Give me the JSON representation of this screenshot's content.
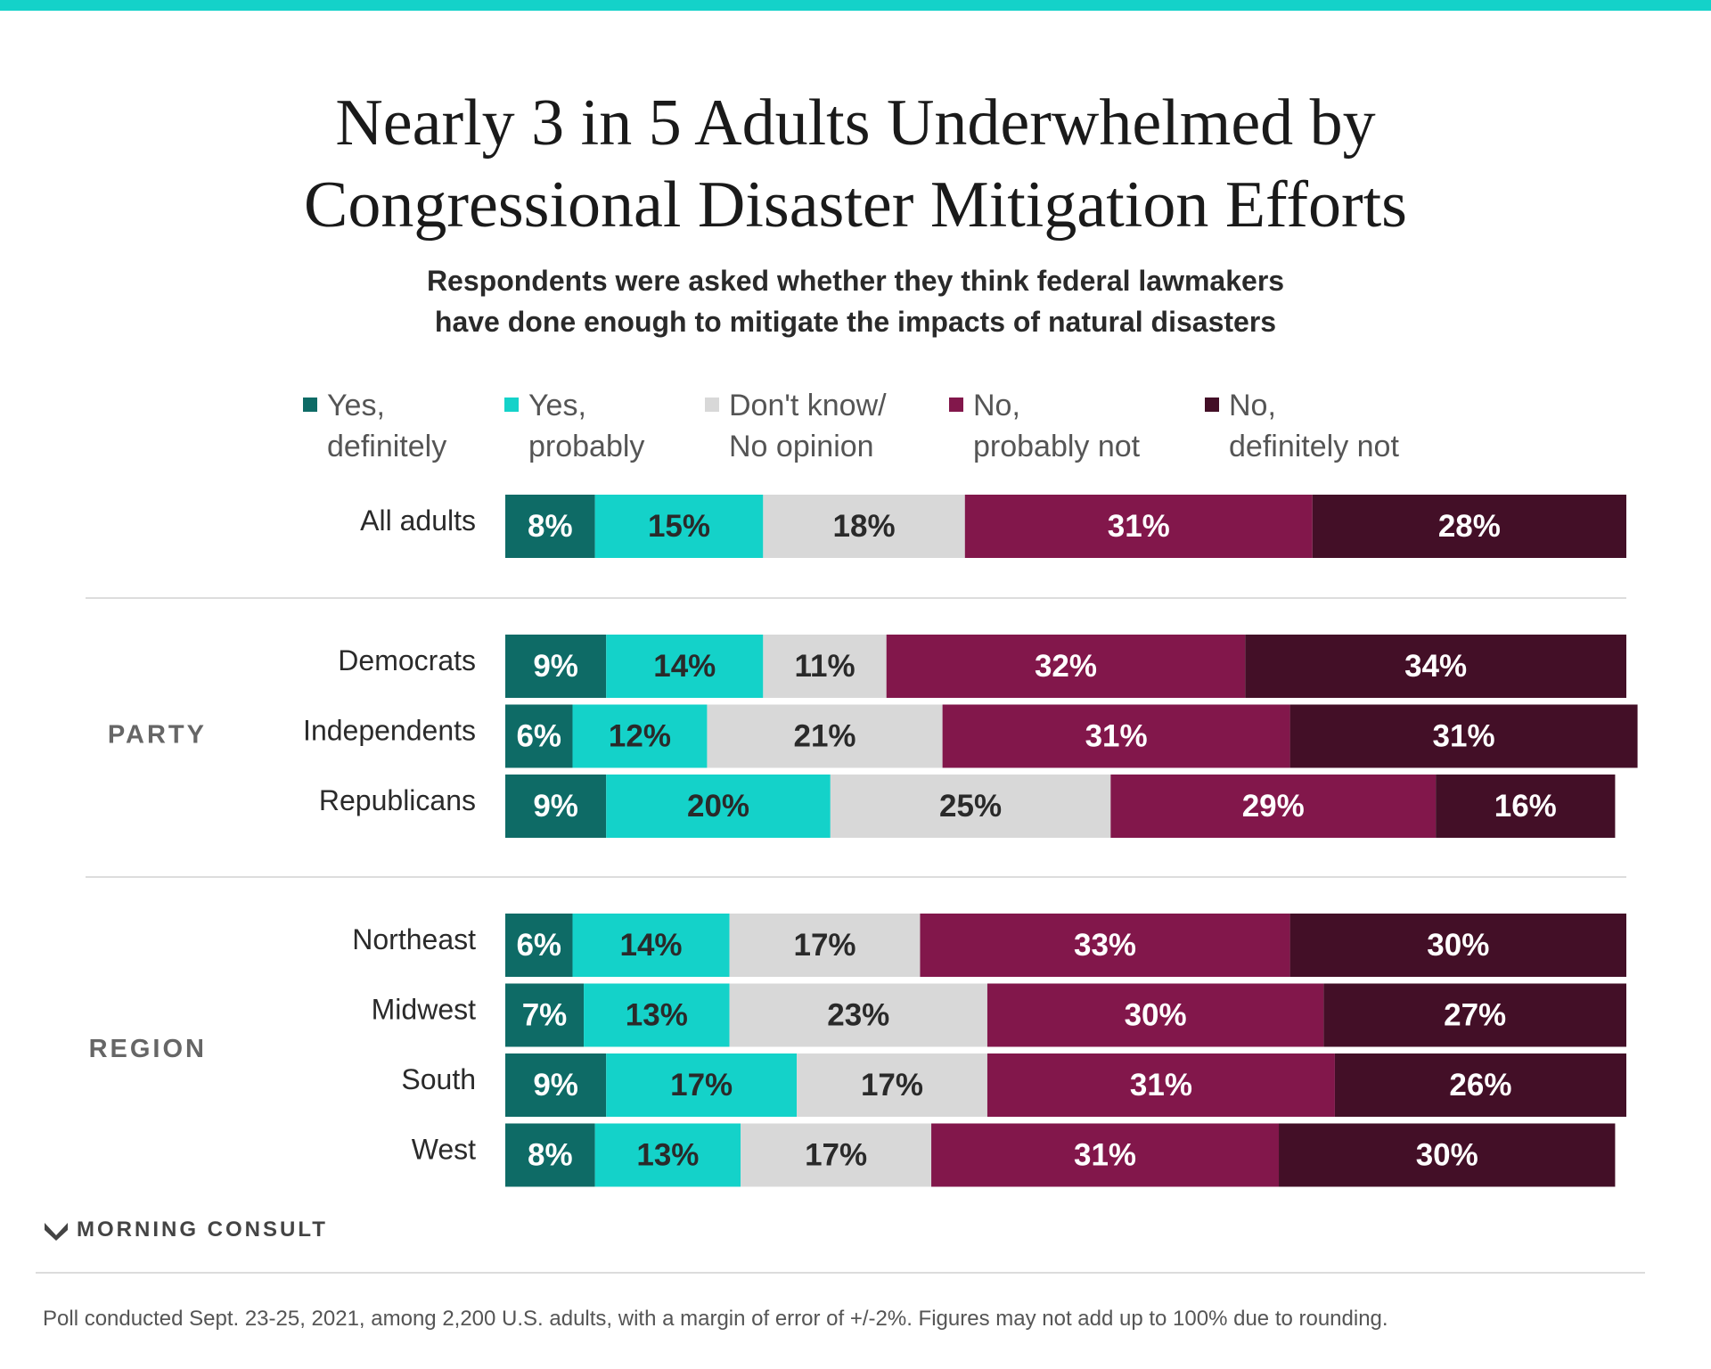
{
  "title_line1": "Nearly 3 in 5 Adults Underwhelmed by",
  "title_line2": "Congressional Disaster Mitigation Efforts",
  "subtitle_line1": "Respondents were asked whether they think federal lawmakers",
  "subtitle_line2": "have done enough to mitigate the impacts of natural disasters",
  "logo_text": "MORNING CONSULT",
  "footnote": "Poll conducted Sept. 23-25, 2021, among 2,200 U.S. adults, with a margin of error of +/-2%. Figures may not add up to 100% due to rounding.",
  "colors": {
    "top_bar": "#14d2c9",
    "label_dark": "#ffffff",
    "label_light": "#2a2a2a"
  },
  "chart_data": {
    "type": "bar",
    "orientation": "horizontal",
    "stacked": true,
    "title": "Nearly 3 in 5 Adults Underwhelmed by Congressional Disaster Mitigation Efforts",
    "xlim": [
      0,
      100
    ],
    "legend": "top",
    "grid": false,
    "series": [
      {
        "name": "Yes,\ndefinitely",
        "color": "#0e6b66"
      },
      {
        "name": "Yes,\nprobably",
        "color": "#14d2c9"
      },
      {
        "name": "Don't know/\nNo opinion",
        "color": "#d8d8d8"
      },
      {
        "name": "No,\nprobably not",
        "color": "#82174b"
      },
      {
        "name": "No,\ndefinitely not",
        "color": "#430f27"
      }
    ],
    "groups": [
      {
        "label": "",
        "rows": [
          {
            "category": "All adults",
            "values": [
              8,
              15,
              18,
              31,
              28
            ]
          }
        ]
      },
      {
        "label": "PARTY",
        "rows": [
          {
            "category": "Democrats",
            "values": [
              9,
              14,
              11,
              32,
              34
            ]
          },
          {
            "category": "Independents",
            "values": [
              6,
              12,
              21,
              31,
              31
            ]
          },
          {
            "category": "Republicans",
            "values": [
              9,
              20,
              25,
              29,
              16
            ]
          }
        ]
      },
      {
        "label": "REGION",
        "rows": [
          {
            "category": "Northeast",
            "values": [
              6,
              14,
              17,
              33,
              30
            ]
          },
          {
            "category": "Midwest",
            "values": [
              7,
              13,
              23,
              30,
              27
            ]
          },
          {
            "category": "South",
            "values": [
              9,
              17,
              17,
              31,
              26
            ]
          },
          {
            "category": "West",
            "values": [
              8,
              13,
              17,
              31,
              30
            ]
          }
        ]
      }
    ]
  }
}
